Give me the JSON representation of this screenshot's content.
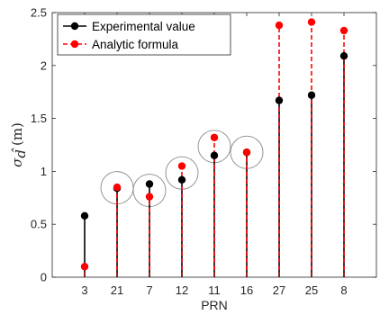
{
  "chart_data": {
    "type": "stem",
    "title": "",
    "xlabel": "PRN",
    "ylabel": {
      "symbol": "σ",
      "subscript": "d̂",
      "unit": "(m)"
    },
    "categories": [
      "3",
      "21",
      "7",
      "12",
      "11",
      "16",
      "27",
      "25",
      "8"
    ],
    "ylim": [
      0,
      2.5
    ],
    "yticks": [
      "0",
      "0.5",
      "1",
      "1.5",
      "2",
      "2.5"
    ],
    "grid": false,
    "legend_position": "top-left",
    "series": [
      {
        "name": "Experimental value",
        "color": "#000000",
        "line_style": "solid",
        "values": [
          0.58,
          0.84,
          0.88,
          0.92,
          1.15,
          1.18,
          1.67,
          1.72,
          2.09
        ]
      },
      {
        "name": "Analytic formula",
        "color": "#ff0000",
        "line_style": "dashed",
        "values": [
          0.1,
          0.85,
          0.76,
          1.05,
          1.32,
          1.18,
          2.38,
          2.41,
          2.33
        ]
      }
    ],
    "highlighted_categories": [
      "21",
      "7",
      "12",
      "11",
      "16"
    ]
  }
}
